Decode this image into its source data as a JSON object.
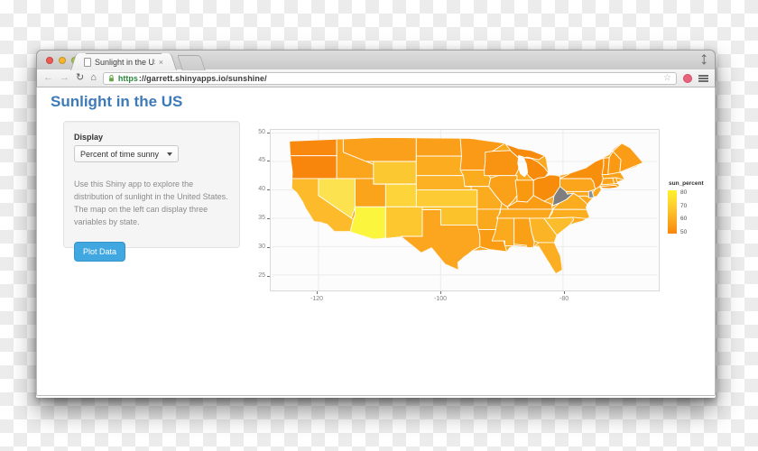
{
  "browser": {
    "tab_title": "Sunlight in the US",
    "close_tab_glyph": "×",
    "url": {
      "scheme": "https",
      "rest": "://garrett.shinyapps.io/sunshine/"
    },
    "traffic_lights": {
      "close": "#ef5a50",
      "minimize": "#f5b52e",
      "zoom": "#a6c53c"
    },
    "nav": {
      "back": "←",
      "forward": "→",
      "reload": "↻",
      "home": "⌂",
      "bookmark_star": "☆",
      "fullscreen": "⤡"
    }
  },
  "page": {
    "title": "Sunlight in the US",
    "sidebar": {
      "display_label": "Display",
      "select_value": "Percent of time sunny",
      "description": "Use this Shiny app to explore the distribution of sunlight in the United States. The map on the left can display three variables by state.",
      "button_label": "Plot Data"
    }
  },
  "chart_data": {
    "type": "choropleth_map",
    "title": "",
    "variable": "sun_percent",
    "projection": "longitude/latitude",
    "x_axis": {
      "label": "",
      "ticks": [
        -120,
        -100,
        -80
      ],
      "range": [
        -127.6,
        -64.5
      ]
    },
    "y_axis": {
      "label": "",
      "ticks": [
        50,
        45,
        40,
        35,
        30,
        25
      ],
      "range": [
        22.3,
        50
      ]
    },
    "legend": {
      "title": "sun_percent",
      "ticks": [
        80,
        70,
        60,
        50
      ],
      "high_color": "#FFF12E",
      "low_color": "#F8860D",
      "na_color": "#7F7F7F",
      "position": "right"
    },
    "grid": true,
    "states": [
      {
        "code": "WA",
        "name": "Washington",
        "value": 47,
        "color": "#F8880E"
      },
      {
        "code": "OR",
        "name": "Oregon",
        "value": 48,
        "color": "#F8850C"
      },
      {
        "code": "CA",
        "name": "California",
        "value": 68,
        "color": "#FDBA2B"
      },
      {
        "code": "NV",
        "name": "Nevada",
        "value": 79,
        "color": "#FBE24E"
      },
      {
        "code": "MT",
        "name": "Montana",
        "value": 57,
        "color": "#FAA01A"
      },
      {
        "code": "ID",
        "name": "Idaho",
        "value": 58,
        "color": "#FAA51C"
      },
      {
        "code": "WY",
        "name": "Wyoming",
        "value": 66,
        "color": "#FCC831"
      },
      {
        "code": "UT",
        "name": "Utah",
        "value": 58,
        "color": "#FAA41C"
      },
      {
        "code": "CO",
        "name": "Colorado",
        "value": 70,
        "color": "#FDD53B"
      },
      {
        "code": "AZ",
        "name": "Arizona",
        "value": 85,
        "color": "#FCF53E"
      },
      {
        "code": "NM",
        "name": "New Mexico",
        "value": 67,
        "color": "#FDC72F"
      },
      {
        "code": "ND",
        "name": "North Dakota",
        "value": 56,
        "color": "#FA9F19"
      },
      {
        "code": "SD",
        "name": "South Dakota",
        "value": 61,
        "color": "#FBAC1F"
      },
      {
        "code": "NE",
        "name": "Nebraska",
        "value": 62,
        "color": "#FBB123"
      },
      {
        "code": "KS",
        "name": "Kansas",
        "value": 68,
        "color": "#FDCB33"
      },
      {
        "code": "OK",
        "name": "Oklahoma",
        "value": 66,
        "color": "#FCC22C"
      },
      {
        "code": "TX",
        "name": "Texas",
        "value": 60,
        "color": "#FBA61E"
      },
      {
        "code": "MN",
        "name": "Minnesota",
        "value": 55,
        "color": "#FA9A16"
      },
      {
        "code": "IA",
        "name": "Iowa",
        "value": 59,
        "color": "#FBAB1E"
      },
      {
        "code": "MO",
        "name": "Missouri",
        "value": 60,
        "color": "#FBAB1E"
      },
      {
        "code": "AR",
        "name": "Arkansas",
        "value": 61,
        "color": "#FAA81C"
      },
      {
        "code": "LA",
        "name": "Louisiana",
        "value": 57,
        "color": "#F99C13"
      },
      {
        "code": "WI",
        "name": "Wisconsin",
        "value": 54,
        "color": "#F99412"
      },
      {
        "code": "IL",
        "name": "Illinois",
        "value": 57,
        "color": "#FAA119"
      },
      {
        "code": "IN",
        "name": "Indiana",
        "value": 55,
        "color": "#F99910"
      },
      {
        "code": "OH",
        "name": "Ohio",
        "value": 51,
        "color": "#F78C0B"
      },
      {
        "code": "MI",
        "name": "Michigan",
        "value": 50,
        "color": "#F78A0A"
      },
      {
        "code": "KY",
        "name": "Kentucky",
        "value": 56,
        "color": "#FA9D15"
      },
      {
        "code": "TN",
        "name": "Tennessee",
        "value": 60,
        "color": "#FBA71E"
      },
      {
        "code": "MS",
        "name": "Mississippi",
        "value": 61,
        "color": "#FBA91D"
      },
      {
        "code": "AL",
        "name": "Alabama",
        "value": 58,
        "color": "#FAA016"
      },
      {
        "code": "GA",
        "name": "Georgia",
        "value": 63,
        "color": "#FBB425"
      },
      {
        "code": "FL",
        "name": "Florida",
        "value": 62,
        "color": "#FBAE22"
      },
      {
        "code": "SC",
        "name": "South Carolina",
        "value": 65,
        "color": "#FCBD2C"
      },
      {
        "code": "NC",
        "name": "North Carolina",
        "value": 61,
        "color": "#FBAE20"
      },
      {
        "code": "VA",
        "name": "Virginia",
        "value": 60,
        "color": "#FBAB1E"
      },
      {
        "code": "WV",
        "name": "West Virginia",
        "value": null,
        "color": "#7F7F7F"
      },
      {
        "code": "MD",
        "name": "Maryland",
        "value": 59,
        "color": "#FBA81E"
      },
      {
        "code": "DE",
        "name": "Delaware",
        "value": null,
        "color": "#8A9096"
      },
      {
        "code": "PA",
        "name": "Pennsylvania",
        "value": 58,
        "color": "#FBA51D"
      },
      {
        "code": "NY",
        "name": "New York",
        "value": 51,
        "color": "#F78E0C"
      },
      {
        "code": "NJ",
        "name": "New Jersey",
        "value": 59,
        "color": "#FBA71E"
      },
      {
        "code": "CT",
        "name": "Connecticut",
        "value": 58,
        "color": "#FBA51C"
      },
      {
        "code": "RI",
        "name": "Rhode Island",
        "value": 57,
        "color": "#FAA118"
      },
      {
        "code": "MA",
        "name": "Massachusetts",
        "value": 57,
        "color": "#FAA118"
      },
      {
        "code": "VT",
        "name": "Vermont",
        "value": 52,
        "color": "#F9940F"
      },
      {
        "code": "NH",
        "name": "New Hampshire",
        "value": 54,
        "color": "#FA9A12"
      },
      {
        "code": "ME",
        "name": "Maine",
        "value": 55,
        "color": "#FA9C15"
      }
    ]
  }
}
